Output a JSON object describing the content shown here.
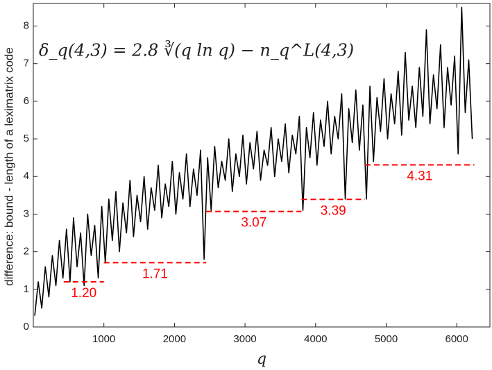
{
  "chart_data": {
    "type": "line",
    "annotation": "δ_q(4,3) = 2.8 ∛(q ln q) − n_q^L(4,3)",
    "xlabel": "q",
    "ylabel": "difference: bound - length of a leximatrix code",
    "xlim": [
      0,
      6470
    ],
    "ylim": [
      0,
      8.6
    ],
    "xticks": [
      1000,
      2000,
      3000,
      4000,
      5000,
      6000
    ],
    "yticks": [
      0,
      1,
      2,
      3,
      4,
      5,
      6,
      7,
      8
    ],
    "x": [
      20,
      70,
      120,
      170,
      220,
      270,
      320,
      370,
      420,
      470,
      520,
      570,
      620,
      670,
      720,
      770,
      820,
      870,
      920,
      970,
      1020,
      1070,
      1120,
      1170,
      1220,
      1270,
      1320,
      1370,
      1420,
      1470,
      1520,
      1570,
      1620,
      1670,
      1720,
      1770,
      1820,
      1870,
      1920,
      1970,
      2020,
      2070,
      2120,
      2170,
      2220,
      2270,
      2320,
      2370,
      2420,
      2470,
      2520,
      2570,
      2620,
      2670,
      2720,
      2770,
      2820,
      2870,
      2920,
      2970,
      3020,
      3070,
      3120,
      3170,
      3220,
      3270,
      3320,
      3370,
      3420,
      3470,
      3520,
      3570,
      3620,
      3670,
      3720,
      3770,
      3820,
      3870,
      3920,
      3970,
      4020,
      4070,
      4120,
      4170,
      4220,
      4270,
      4320,
      4370,
      4420,
      4470,
      4520,
      4570,
      4620,
      4670,
      4720,
      4770,
      4820,
      4870,
      4920,
      4970,
      5020,
      5070,
      5120,
      5170,
      5220,
      5270,
      5320,
      5370,
      5420,
      5470,
      5520,
      5570,
      5620,
      5670,
      5720,
      5770,
      5820,
      5870,
      5920,
      5970,
      6020,
      6070,
      6120,
      6170,
      6220
    ],
    "series": [
      {
        "color": "#000000",
        "values": [
          0.3,
          1.2,
          0.5,
          1.6,
          0.8,
          1.9,
          1.1,
          2.3,
          1.3,
          2.6,
          1.2,
          2.9,
          1.6,
          2.5,
          1.1,
          3.0,
          1.9,
          2.7,
          1.3,
          3.2,
          1.7,
          3.4,
          2.3,
          3.6,
          2.0,
          3.3,
          2.5,
          3.9,
          2.4,
          3.5,
          2.8,
          4.0,
          2.6,
          3.7,
          3.1,
          4.3,
          2.9,
          3.8,
          3.2,
          4.4,
          3.0,
          4.1,
          3.4,
          4.6,
          3.2,
          4.2,
          3.5,
          4.7,
          1.8,
          4.5,
          3.1,
          4.8,
          3.7,
          4.4,
          3.9,
          5.0,
          3.6,
          4.6,
          4.0,
          5.1,
          3.8,
          4.9,
          4.2,
          5.2,
          3.9,
          4.7,
          4.3,
          5.3,
          4.0,
          5.0,
          4.4,
          5.4,
          4.1,
          5.1,
          4.6,
          5.6,
          3.1,
          5.3,
          4.5,
          5.7,
          4.3,
          5.5,
          4.8,
          6.0,
          4.6,
          5.6,
          5.0,
          6.2,
          3.4,
          5.8,
          4.9,
          6.3,
          4.7,
          5.9,
          3.4,
          6.4,
          4.4,
          6.1,
          5.2,
          6.6,
          5.0,
          6.2,
          5.4,
          6.8,
          5.1,
          7.3,
          5.5,
          6.4,
          5.3,
          6.9,
          5.6,
          7.9,
          5.4,
          6.7,
          5.8,
          7.5,
          5.3,
          6.9,
          5.9,
          7.2,
          4.6,
          8.5,
          5.7,
          7.1,
          5.0
        ]
      }
    ],
    "steps": {
      "color": "#ff0000",
      "x_ranges": [
        [
          430,
          1000
        ],
        [
          1000,
          2450
        ],
        [
          2450,
          3800
        ],
        [
          3800,
          4700
        ],
        [
          4700,
          6250
        ]
      ],
      "values": [
        1.2,
        1.71,
        3.07,
        3.39,
        4.31
      ],
      "value_labels": [
        "1.20",
        "1.71",
        "3.07",
        "3.39",
        "4.31"
      ]
    }
  }
}
